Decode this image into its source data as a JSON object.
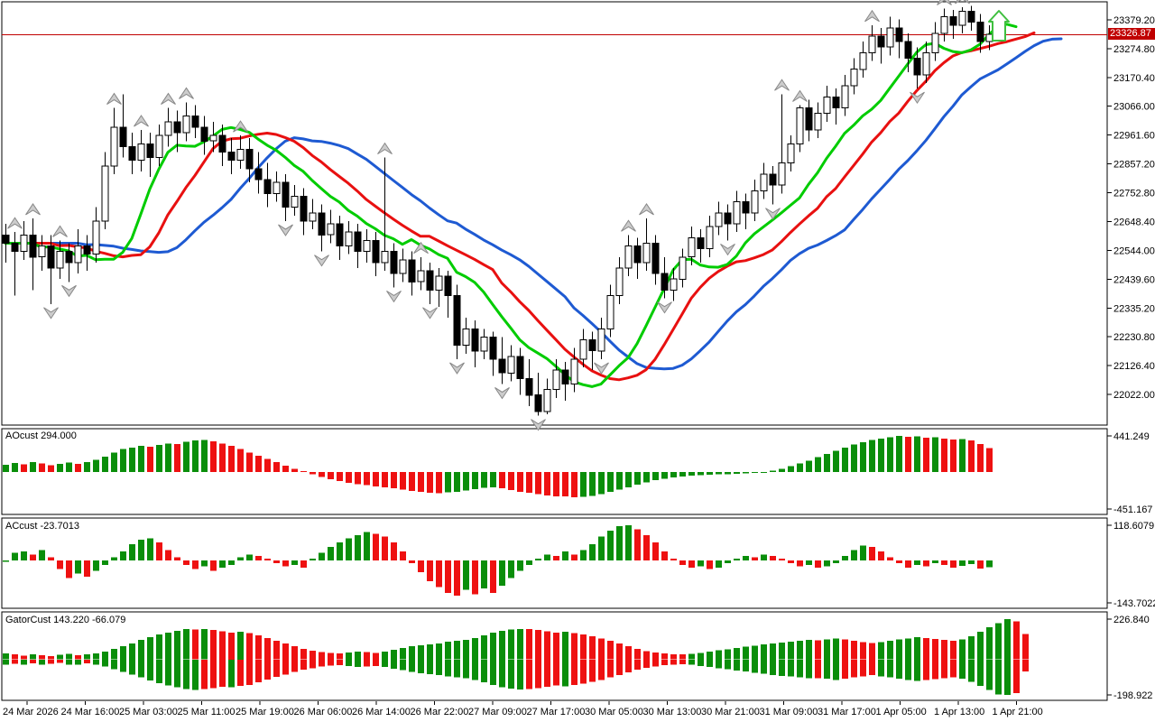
{
  "window": {
    "type": "trading-chart",
    "background": "#ffffff"
  },
  "colors": {
    "bull": "#ffffff",
    "bear": "#000000",
    "wick": "#000000",
    "alligator_lips": "#00cc00",
    "alligator_teeth": "#e81010",
    "alligator_jaw": "#1e5ad2",
    "hist_up": "#0a8e0a",
    "hist_down": "#ee1111",
    "price_line": "#c00000",
    "tag_bg": "#c00000",
    "tag_text": "#ffffff",
    "fractal_fill": "#cccccc",
    "fractal_stroke": "#888888",
    "buy_arrow": "#3fbf3f",
    "border": "#000000",
    "text": "#000000"
  },
  "time_axis": {
    "labels": [
      "24 Mar 2026",
      "24 Mar 16:00",
      "25 Mar 03:00",
      "25 Mar 11:00",
      "25 Mar 19:00",
      "26 Mar 06:00",
      "26 Mar 14:00",
      "26 Mar 22:00",
      "27 Mar 09:00",
      "27 Mar 17:00",
      "30 Mar 05:00",
      "30 Mar 13:00",
      "30 Mar 21:00",
      "31 Mar 09:00",
      "31 Mar 17:00",
      "1 Apr 05:00",
      "1 Apr 13:00",
      "1 Apr 21:00"
    ]
  },
  "chart_data": [
    {
      "type": "candlestick",
      "panel": "main",
      "current_price": "23326.87",
      "current_price_value": 23326.87,
      "ylim": [
        21921,
        23441
      ],
      "price_axis_labels": [
        "23379.20",
        "23274.80",
        "23170.40",
        "23066.00",
        "22961.60",
        "22857.20",
        "22752.80",
        "22648.40",
        "22544.00",
        "22439.60",
        "22335.20",
        "22230.80",
        "22126.40",
        "22022.00"
      ],
      "overlays": [
        {
          "name": "alligator-jaw",
          "color": "#1e5ad2",
          "period": 13,
          "shift": 8
        },
        {
          "name": "alligator-teeth",
          "color": "#e81010",
          "period": 8,
          "shift": 5
        },
        {
          "name": "alligator-lips",
          "color": "#00cc00",
          "period": 5,
          "shift": 3
        }
      ],
      "fractals_up": [
        1,
        3,
        6,
        12,
        15,
        18,
        20,
        26,
        42,
        46,
        69,
        71,
        86,
        88,
        96,
        104,
        106
      ],
      "fractals_down": [
        5,
        7,
        31,
        35,
        43,
        47,
        50,
        55,
        59,
        66,
        73,
        80,
        85,
        101
      ],
      "buy_signal": {
        "index": 110,
        "label": "buy-arrow"
      },
      "candles": [
        [
          22600,
          22640,
          22500,
          22570
        ],
        [
          22570,
          22610,
          22380,
          22540
        ],
        [
          22540,
          22650,
          22510,
          22600
        ],
        [
          22600,
          22660,
          22400,
          22520
        ],
        [
          22520,
          22600,
          22470,
          22560
        ],
        [
          22560,
          22600,
          22350,
          22480
        ],
        [
          22480,
          22580,
          22440,
          22540
        ],
        [
          22540,
          22570,
          22430,
          22500
        ],
        [
          22500,
          22620,
          22460,
          22560
        ],
        [
          22560,
          22600,
          22470,
          22530
        ],
        [
          22530,
          22700,
          22500,
          22650
        ],
        [
          22650,
          22900,
          22620,
          22850
        ],
        [
          22850,
          23060,
          22820,
          22990
        ],
        [
          22990,
          23110,
          22880,
          22920
        ],
        [
          22920,
          22970,
          22820,
          22870
        ],
        [
          22870,
          22980,
          22830,
          22930
        ],
        [
          22930,
          22970,
          22810,
          22880
        ],
        [
          22880,
          23000,
          22850,
          22960
        ],
        [
          22960,
          23060,
          22920,
          23010
        ],
        [
          23010,
          23050,
          22900,
          22970
        ],
        [
          22970,
          23080,
          22940,
          23030
        ],
        [
          23030,
          23070,
          22950,
          22990
        ],
        [
          22990,
          23030,
          22890,
          22940
        ],
        [
          22940,
          23010,
          22900,
          22960
        ],
        [
          22960,
          23000,
          22850,
          22900
        ],
        [
          22900,
          22950,
          22820,
          22870
        ],
        [
          22870,
          22960,
          22840,
          22910
        ],
        [
          22910,
          22950,
          22790,
          22840
        ],
        [
          22840,
          22900,
          22750,
          22800
        ],
        [
          22800,
          22860,
          22700,
          22750
        ],
        [
          22750,
          22830,
          22720,
          22790
        ],
        [
          22790,
          22820,
          22650,
          22700
        ],
        [
          22700,
          22780,
          22670,
          22740
        ],
        [
          22740,
          22770,
          22600,
          22650
        ],
        [
          22650,
          22730,
          22620,
          22680
        ],
        [
          22680,
          22710,
          22540,
          22600
        ],
        [
          22600,
          22690,
          22570,
          22640
        ],
        [
          22640,
          22670,
          22510,
          22560
        ],
        [
          22560,
          22650,
          22530,
          22610
        ],
        [
          22610,
          22640,
          22480,
          22540
        ],
        [
          22540,
          22620,
          22500,
          22580
        ],
        [
          22580,
          22610,
          22450,
          22500
        ],
        [
          22500,
          22880,
          22470,
          22540
        ],
        [
          22540,
          22570,
          22410,
          22460
        ],
        [
          22460,
          22550,
          22430,
          22510
        ],
        [
          22510,
          22540,
          22380,
          22430
        ],
        [
          22430,
          22520,
          22400,
          22470
        ],
        [
          22470,
          22500,
          22350,
          22400
        ],
        [
          22400,
          22480,
          22340,
          22450
        ],
        [
          22450,
          22470,
          22300,
          22380
        ],
        [
          22380,
          22420,
          22150,
          22200
        ],
        [
          22200,
          22300,
          22170,
          22260
        ],
        [
          22260,
          22290,
          22120,
          22180
        ],
        [
          22180,
          22260,
          22150,
          22230
        ],
        [
          22230,
          22250,
          22090,
          22150
        ],
        [
          22150,
          22230,
          22060,
          22100
        ],
        [
          22100,
          22200,
          22070,
          22160
        ],
        [
          22160,
          22190,
          22020,
          22080
        ],
        [
          22080,
          22150,
          21980,
          22020
        ],
        [
          22020,
          22100,
          21945,
          21960
        ],
        [
          21960,
          22080,
          21950,
          22040
        ],
        [
          22040,
          22150,
          22010,
          22110
        ],
        [
          22110,
          22140,
          22000,
          22060
        ],
        [
          22060,
          22190,
          22030,
          22150
        ],
        [
          22150,
          22260,
          22120,
          22220
        ],
        [
          22220,
          22250,
          22110,
          22180
        ],
        [
          22180,
          22300,
          22150,
          22260
        ],
        [
          22260,
          22420,
          22230,
          22380
        ],
        [
          22380,
          22520,
          22350,
          22480
        ],
        [
          22480,
          22600,
          22450,
          22560
        ],
        [
          22560,
          22590,
          22440,
          22500
        ],
        [
          22500,
          22660,
          22470,
          22570
        ],
        [
          22570,
          22600,
          22420,
          22460
        ],
        [
          22460,
          22520,
          22370,
          22400
        ],
        [
          22400,
          22480,
          22360,
          22440
        ],
        [
          22440,
          22550,
          22410,
          22520
        ],
        [
          22520,
          22630,
          22490,
          22590
        ],
        [
          22590,
          22620,
          22500,
          22550
        ],
        [
          22550,
          22670,
          22520,
          22630
        ],
        [
          22630,
          22720,
          22600,
          22680
        ],
        [
          22680,
          22710,
          22580,
          22640
        ],
        [
          22640,
          22760,
          22610,
          22720
        ],
        [
          22720,
          22750,
          22620,
          22680
        ],
        [
          22680,
          22800,
          22650,
          22760
        ],
        [
          22760,
          22860,
          22730,
          22820
        ],
        [
          22820,
          22850,
          22710,
          22780
        ],
        [
          22780,
          23110,
          22750,
          22860
        ],
        [
          22860,
          22960,
          22830,
          22930
        ],
        [
          22930,
          23070,
          22900,
          23060
        ],
        [
          23060,
          23090,
          22940,
          22980
        ],
        [
          22980,
          23080,
          22950,
          23040
        ],
        [
          23040,
          23140,
          23010,
          23100
        ],
        [
          23100,
          23130,
          23000,
          23060
        ],
        [
          23060,
          23180,
          23030,
          23140
        ],
        [
          23140,
          23240,
          23110,
          23200
        ],
        [
          23200,
          23300,
          23170,
          23260
        ],
        [
          23260,
          23360,
          23230,
          23320
        ],
        [
          23320,
          23350,
          23220,
          23280
        ],
        [
          23280,
          23390,
          23250,
          23350
        ],
        [
          23350,
          23380,
          23240,
          23300
        ],
        [
          23300,
          23330,
          23190,
          23240
        ],
        [
          23240,
          23280,
          23130,
          23180
        ],
        [
          23180,
          23300,
          23150,
          23260
        ],
        [
          23260,
          23370,
          23230,
          23330
        ],
        [
          23330,
          23420,
          23300,
          23390
        ],
        [
          23390,
          23415,
          23310,
          23360
        ],
        [
          23360,
          23425,
          23330,
          23410
        ],
        [
          23410,
          23430,
          23340,
          23370
        ],
        [
          23370,
          23400,
          23260,
          23300
        ],
        [
          23300,
          23360,
          23270,
          23326.87
        ]
      ]
    },
    {
      "type": "bar",
      "panel": "indicator-1",
      "name": "AOcust",
      "label": "AOcust 294.000",
      "max_label": "441.249",
      "min_label": "-451.167",
      "ylim": [
        -451.167,
        441.249
      ],
      "values": [
        90,
        110,
        95,
        120,
        105,
        85,
        100,
        115,
        100,
        120,
        150,
        190,
        240,
        280,
        300,
        320,
        310,
        330,
        350,
        340,
        370,
        385,
        390,
        375,
        350,
        320,
        280,
        240,
        200,
        160,
        120,
        80,
        40,
        10,
        -30,
        -60,
        -90,
        -110,
        -130,
        -150,
        -160,
        -175,
        -185,
        -200,
        -215,
        -230,
        -245,
        -255,
        -260,
        -250,
        -240,
        -225,
        -210,
        -195,
        -185,
        -200,
        -220,
        -240,
        -255,
        -270,
        -285,
        -295,
        -300,
        -310,
        -305,
        -290,
        -270,
        -245,
        -215,
        -185,
        -155,
        -125,
        -100,
        -80,
        -65,
        -55,
        -45,
        -40,
        -35,
        -30,
        -25,
        -20,
        -15,
        -10,
        -5,
        15,
        40,
        70,
        105,
        140,
        180,
        220,
        260,
        300,
        335,
        365,
        390,
        410,
        425,
        441,
        430,
        435,
        420,
        425,
        410,
        395,
        405,
        385,
        340,
        294
      ]
    },
    {
      "type": "bar",
      "panel": "indicator-2",
      "name": "ACcust",
      "label": "ACcust -23.7013",
      "max_label": "118.6079",
      "min_label": "-143.7022",
      "ylim": [
        -143.7022,
        118.6079
      ],
      "values": [
        -5,
        25,
        30,
        20,
        35,
        10,
        -30,
        -60,
        -45,
        -55,
        -35,
        -15,
        10,
        30,
        55,
        70,
        75,
        60,
        35,
        10,
        -15,
        -30,
        -20,
        -35,
        -25,
        -15,
        10,
        20,
        15,
        5,
        -10,
        -20,
        -15,
        -25,
        5,
        25,
        45,
        60,
        75,
        85,
        95,
        90,
        80,
        60,
        30,
        -10,
        -40,
        -70,
        -90,
        -110,
        -120,
        -100,
        -115,
        -95,
        -110,
        -85,
        -60,
        -35,
        -15,
        5,
        20,
        15,
        30,
        20,
        35,
        55,
        80,
        100,
        115,
        118,
        105,
        85,
        60,
        30,
        5,
        -15,
        -25,
        -20,
        -30,
        -25,
        -10,
        5,
        15,
        10,
        20,
        15,
        5,
        -10,
        -20,
        -15,
        -25,
        -20,
        -10,
        15,
        35,
        50,
        45,
        30,
        10,
        -10,
        -25,
        -15,
        -20,
        -10,
        -15,
        -25,
        -18,
        -12,
        -28,
        -23.7
      ]
    },
    {
      "type": "bar",
      "panel": "indicator-3",
      "name": "GatorCust",
      "label": "GatorCust 143.220 -66.079",
      "max_label": "226.840",
      "min_label": "-198.922",
      "ylim": [
        -198.922,
        226.84
      ],
      "upper": [
        35,
        28,
        22,
        30,
        25,
        20,
        26,
        32,
        24,
        28,
        35,
        45,
        60,
        75,
        90,
        110,
        125,
        140,
        150,
        160,
        170,
        168,
        172,
        165,
        158,
        150,
        155,
        148,
        135,
        120,
        105,
        90,
        75,
        60,
        50,
        42,
        38,
        35,
        40,
        45,
        42,
        38,
        45,
        55,
        65,
        75,
        80,
        85,
        90,
        100,
        105,
        110,
        120,
        135,
        150,
        160,
        168,
        172,
        170,
        165,
        158,
        150,
        155,
        148,
        140,
        130,
        118,
        105,
        90,
        75,
        60,
        48,
        40,
        35,
        30,
        28,
        32,
        38,
        45,
        52,
        58,
        65,
        72,
        78,
        85,
        90,
        95,
        100,
        105,
        110,
        108,
        112,
        118,
        112,
        105,
        98,
        92,
        98,
        105,
        112,
        118,
        125,
        120,
        115,
        110,
        105,
        112,
        130,
        155,
        180,
        205,
        226,
        215,
        143
      ],
      "lower": [
        30,
        25,
        28,
        22,
        30,
        24,
        20,
        28,
        30,
        22,
        30,
        40,
        55,
        70,
        85,
        100,
        118,
        132,
        145,
        155,
        165,
        170,
        166,
        160,
        152,
        156,
        148,
        142,
        128,
        112,
        98,
        85,
        70,
        58,
        48,
        40,
        35,
        32,
        36,
        42,
        40,
        36,
        42,
        52,
        60,
        70,
        76,
        82,
        86,
        95,
        100,
        106,
        115,
        128,
        142,
        155,
        162,
        168,
        166,
        160,
        154,
        146,
        150,
        144,
        136,
        126,
        114,
        100,
        86,
        72,
        58,
        46,
        38,
        32,
        28,
        26,
        30,
        36,
        42,
        50,
        55,
        62,
        68,
        75,
        80,
        86,
        92,
        96,
        100,
        106,
        104,
        108,
        114,
        108,
        100,
        94,
        88,
        94,
        100,
        108,
        114,
        120,
        116,
        110,
        106,
        100,
        108,
        125,
        148,
        172,
        195,
        199,
        188,
        66
      ]
    }
  ]
}
